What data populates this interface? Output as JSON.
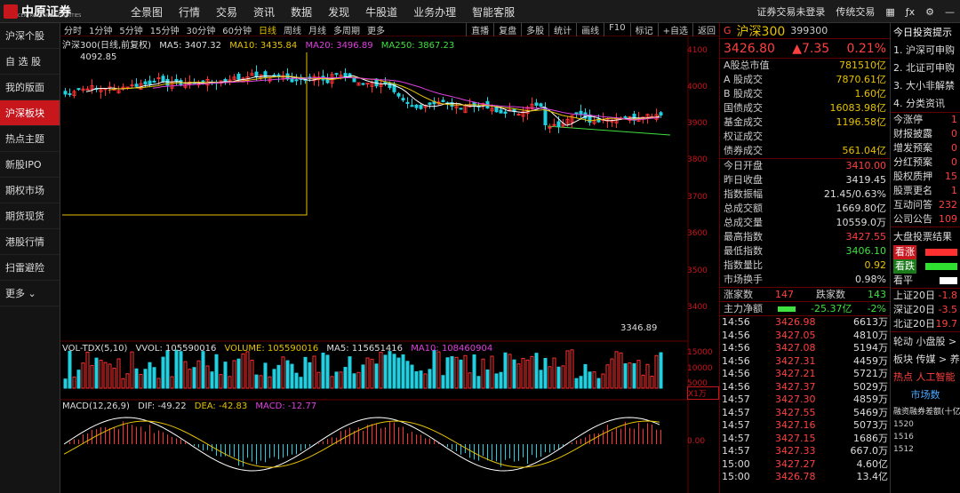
{
  "top": {
    "logo": "中原证券",
    "logo_sub": "CENTRAL CHINA SECURITIES",
    "nav": [
      "全景图",
      "行情",
      "交易",
      "资讯",
      "数据",
      "发现",
      "牛股道",
      "业务办理",
      "智能客服"
    ],
    "right": [
      "证券交易未登录",
      "传统交易"
    ]
  },
  "sidebar": [
    "沪深个股",
    "自 选 股",
    "我的版面",
    "沪深板块",
    "热点主题",
    "新股IPO",
    "期权市场",
    "期货现货",
    "港股行情",
    "扫雷避险",
    "更多"
  ],
  "sidebar_active": 3,
  "timeframes": [
    "分时",
    "1分钟",
    "5分钟",
    "15分钟",
    "30分钟",
    "60分钟",
    "日线",
    "周线",
    "月线",
    "多周期",
    "更多"
  ],
  "tf_selected": 6,
  "tools": [
    "直播",
    "复盘",
    "多股",
    "统计",
    "画线",
    "F10",
    "标记",
    "+自选",
    "返回"
  ],
  "k_legend": {
    "name": "沪深300(日线,前复权)",
    "ma5": "MA5: 3407.32",
    "ma10": "MA10: 3435.84",
    "ma20": "MA20: 3496.89",
    "ma250": "MA250: 3867.23"
  },
  "hi_label": "4092.85",
  "lo_label": "3346.89",
  "price_axis": [
    "4100",
    "4000",
    "3900",
    "3800",
    "3700",
    "3600",
    "3500",
    "3400"
  ],
  "vol_legend": {
    "name": "VOL-TDX(5,10)",
    "vvol": "VVOL: 105590016",
    "volume": "VOLUME: 105590016",
    "ma5": "MA5: 115651416",
    "ma10": "MA10: 108460904"
  },
  "vol_axis": [
    "15000",
    "10000",
    "5000",
    "X1万"
  ],
  "macd_legend": {
    "name": "MACD(12,26,9)",
    "dif": "DIF: -49.22",
    "dea": "DEA: -42.83",
    "macd": "MACD: -12.77"
  },
  "macd_axis": [
    "0.00"
  ],
  "quote": {
    "code_tag": "G",
    "name": "沪深300",
    "code": "399300",
    "price": "3426.80",
    "chg": "▲7.35",
    "pct": "0.21%"
  },
  "stats1": [
    [
      "A股总市值",
      "781510亿"
    ],
    [
      "A 股成交",
      "7870.61亿"
    ],
    [
      "B 股成交",
      "1.60亿"
    ],
    [
      "国债成交",
      "16083.98亿"
    ],
    [
      "基金成交",
      "1196.58亿"
    ],
    [
      "权证成交",
      ""
    ],
    [
      "债券成交",
      "561.04亿"
    ]
  ],
  "stats2": [
    [
      "今日开盘",
      "3410.00"
    ],
    [
      "昨日收盘",
      "3419.45"
    ],
    [
      "指数振幅",
      "21.45/0.63%"
    ],
    [
      "总成交额",
      "1669.80亿"
    ],
    [
      "总成交量",
      "10559.0万"
    ],
    [
      "最高指数",
      "3427.55"
    ],
    [
      "最低指数",
      "3406.10"
    ],
    [
      "指数量比",
      "0.92"
    ],
    [
      "市场换手",
      "0.98%"
    ]
  ],
  "breadth": {
    "up_label": "涨家数",
    "up": "147",
    "down_label": "跌家数",
    "down": "143"
  },
  "netflow": {
    "label": "主力净额",
    "value": "-25.37亿",
    "pct": "-2%"
  },
  "ticks": [
    [
      "14:56",
      "3426.98",
      "6613万"
    ],
    [
      "14:56",
      "3427.05",
      "4810万"
    ],
    [
      "14:56",
      "3427.08",
      "5194万"
    ],
    [
      "14:56",
      "3427.31",
      "4459万"
    ],
    [
      "14:56",
      "3427.21",
      "5721万"
    ],
    [
      "14:56",
      "3427.37",
      "5029万"
    ],
    [
      "14:57",
      "3427.30",
      "4859万"
    ],
    [
      "14:57",
      "3427.55",
      "5469万"
    ],
    [
      "14:57",
      "3427.16",
      "5073万"
    ],
    [
      "14:57",
      "3427.15",
      "1686万"
    ],
    [
      "14:57",
      "3427.33",
      "667.0万"
    ],
    [
      "15:00",
      "3427.27",
      "4.60亿"
    ],
    [
      "15:00",
      "3426.78",
      "13.4亿"
    ]
  ],
  "far": {
    "title": "今日投资提示",
    "items": [
      "1. 沪深可申购",
      "2. 北证可申购",
      "3. 大小非解禁",
      "4. 分类资讯"
    ],
    "rows": [
      [
        "今涨停",
        "1"
      ],
      [
        "财报披露",
        "0"
      ],
      [
        "增发预案",
        "0"
      ],
      [
        "分红预案",
        "0"
      ],
      [
        "股权质押",
        "15"
      ],
      [
        "股票更名",
        "1"
      ],
      [
        "互动问答",
        "232"
      ],
      [
        "公司公告",
        "109"
      ]
    ],
    "bigpan": "大盘投票结果",
    "votes": [
      "看涨",
      "看跌",
      "看平"
    ],
    "north": [
      [
        "上证20日",
        "-1.8"
      ],
      [
        "深证20日",
        "-3.5"
      ],
      [
        "北证20日",
        "19.7"
      ]
    ],
    "rot": [
      "轮动 小盘股 >",
      "板块 传媒 > 养",
      "热点 人工智能"
    ],
    "mkt": "市场数",
    "margin": "融资融券差额(十亿",
    "margin_vals": [
      "1520",
      "1516",
      "1512"
    ]
  }
}
